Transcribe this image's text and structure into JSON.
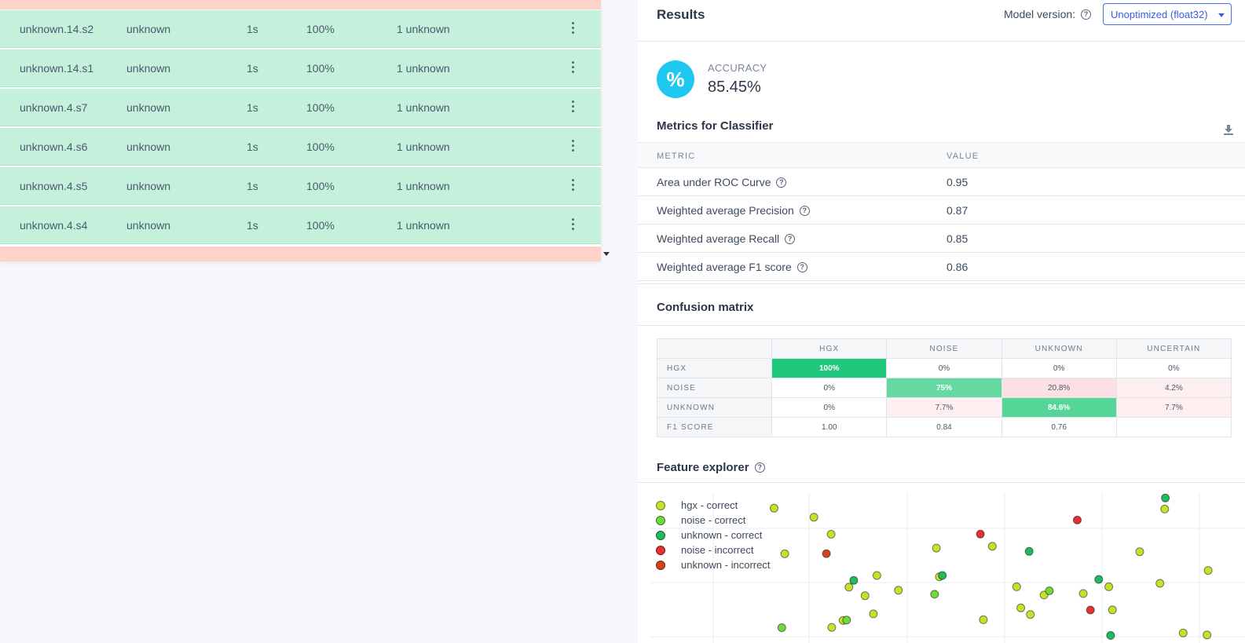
{
  "table": {
    "rows": [
      {
        "name": "unknown.14.s2",
        "label": "unknown",
        "length": "1s",
        "accuracy": "100%",
        "result": "1 unknown"
      },
      {
        "name": "unknown.14.s1",
        "label": "unknown",
        "length": "1s",
        "accuracy": "100%",
        "result": "1 unknown"
      },
      {
        "name": "unknown.4.s7",
        "label": "unknown",
        "length": "1s",
        "accuracy": "100%",
        "result": "1 unknown"
      },
      {
        "name": "unknown.4.s6",
        "label": "unknown",
        "length": "1s",
        "accuracy": "100%",
        "result": "1 unknown"
      },
      {
        "name": "unknown.4.s5",
        "label": "unknown",
        "length": "1s",
        "accuracy": "100%",
        "result": "1 unknown"
      },
      {
        "name": "unknown.4.s4",
        "label": "unknown",
        "length": "1s",
        "accuracy": "100%",
        "result": "1 unknown"
      }
    ]
  },
  "results": {
    "title": "Results",
    "model_version_label": "Model version:",
    "model_version_value": "Unoptimized (float32)",
    "accuracy_icon_text": "%",
    "accuracy_label": "ACCURACY",
    "accuracy_value": "85.45%"
  },
  "metrics": {
    "title": "Metrics for Classifier",
    "col_metric": "METRIC",
    "col_value": "VALUE",
    "rows": [
      {
        "name": "Area under ROC Curve",
        "value": "0.95"
      },
      {
        "name": "Weighted average Precision",
        "value": "0.87"
      },
      {
        "name": "Weighted average Recall",
        "value": "0.85"
      },
      {
        "name": "Weighted average F1 score",
        "value": "0.86"
      }
    ]
  },
  "confusion": {
    "title": "Confusion matrix",
    "columns": [
      "HGX",
      "NOISE",
      "UNKNOWN",
      "UNCERTAIN"
    ],
    "rows": [
      {
        "label": "HGX",
        "cells": [
          "100%",
          "0%",
          "0%",
          "0%"
        ]
      },
      {
        "label": "NOISE",
        "cells": [
          "0%",
          "75%",
          "20.8%",
          "4.2%"
        ]
      },
      {
        "label": "UNKNOWN",
        "cells": [
          "0%",
          "7.7%",
          "84.6%",
          "7.7%"
        ]
      },
      {
        "label": "F1 SCORE",
        "cells": [
          "1.00",
          "0.84",
          "0.76",
          ""
        ]
      }
    ]
  },
  "feature_explorer": {
    "title": "Feature explorer",
    "legend": [
      {
        "label": "hgx - correct",
        "color": "#c6e12a"
      },
      {
        "label": "noise - correct",
        "color": "#72d93b"
      },
      {
        "label": "unknown - correct",
        "color": "#21bb5c"
      },
      {
        "label": "noise - incorrect",
        "color": "#e53131"
      },
      {
        "label": "unknown - incorrect",
        "color": "#d3441b"
      }
    ]
  },
  "chart_data": {
    "type": "scatter",
    "title": "Feature explorer",
    "xlabel": "",
    "ylabel": "",
    "xlim": [
      0,
      100
    ],
    "ylim": [
      0,
      100
    ],
    "grid": true,
    "legend_position": "top-left",
    "series": [
      {
        "name": "hgx - correct",
        "points": [
          [
            30.4,
            72.5
          ],
          [
            27.5,
            83.9
          ],
          [
            41.7,
            35.2
          ],
          [
            48.1,
            63.3
          ],
          [
            61.6,
            37.5
          ],
          [
            62.3,
            23.4
          ],
          [
            72.8,
            33.0
          ],
          [
            57.5,
            64.5
          ],
          [
            85.7,
            39.8
          ],
          [
            82.3,
            60.9
          ],
          [
            86.5,
            89.3
          ],
          [
            93.8,
            48.4
          ],
          [
            63.9,
            19.0
          ],
          [
            77.1,
            37.5
          ],
          [
            22.6,
            59.5
          ],
          [
            20.8,
            89.9
          ],
          [
            48.6,
            44.2
          ],
          [
            38.1,
            45.0
          ],
          [
            33.4,
            37.2
          ],
          [
            36.1,
            31.5
          ],
          [
            30.5,
            10.4
          ],
          [
            37.5,
            19.4
          ],
          [
            66.2,
            32.0
          ],
          [
            77.7,
            22.1
          ],
          [
            89.6,
            6.7
          ],
          [
            93.6,
            5.4
          ],
          [
            32.4,
            15.1
          ],
          [
            56.0,
            15.5
          ]
        ]
      },
      {
        "name": "noise - correct",
        "points": [
          [
            47.8,
            32.5
          ],
          [
            33.0,
            15.3
          ],
          [
            22.1,
            10.2
          ],
          [
            67.1,
            34.8
          ]
        ]
      },
      {
        "name": "unknown - correct",
        "points": [
          [
            49.1,
            45.0
          ],
          [
            86.6,
            96.7
          ],
          [
            63.7,
            61.1
          ],
          [
            75.4,
            42.4
          ],
          [
            34.2,
            41.8
          ],
          [
            77.4,
            5.0
          ]
        ]
      },
      {
        "name": "noise - incorrect",
        "points": [
          [
            71.8,
            82.0
          ],
          [
            55.5,
            72.6
          ],
          [
            74.0,
            22.0
          ]
        ]
      },
      {
        "name": "unknown - incorrect",
        "points": [
          [
            29.6,
            59.6
          ]
        ]
      }
    ]
  }
}
